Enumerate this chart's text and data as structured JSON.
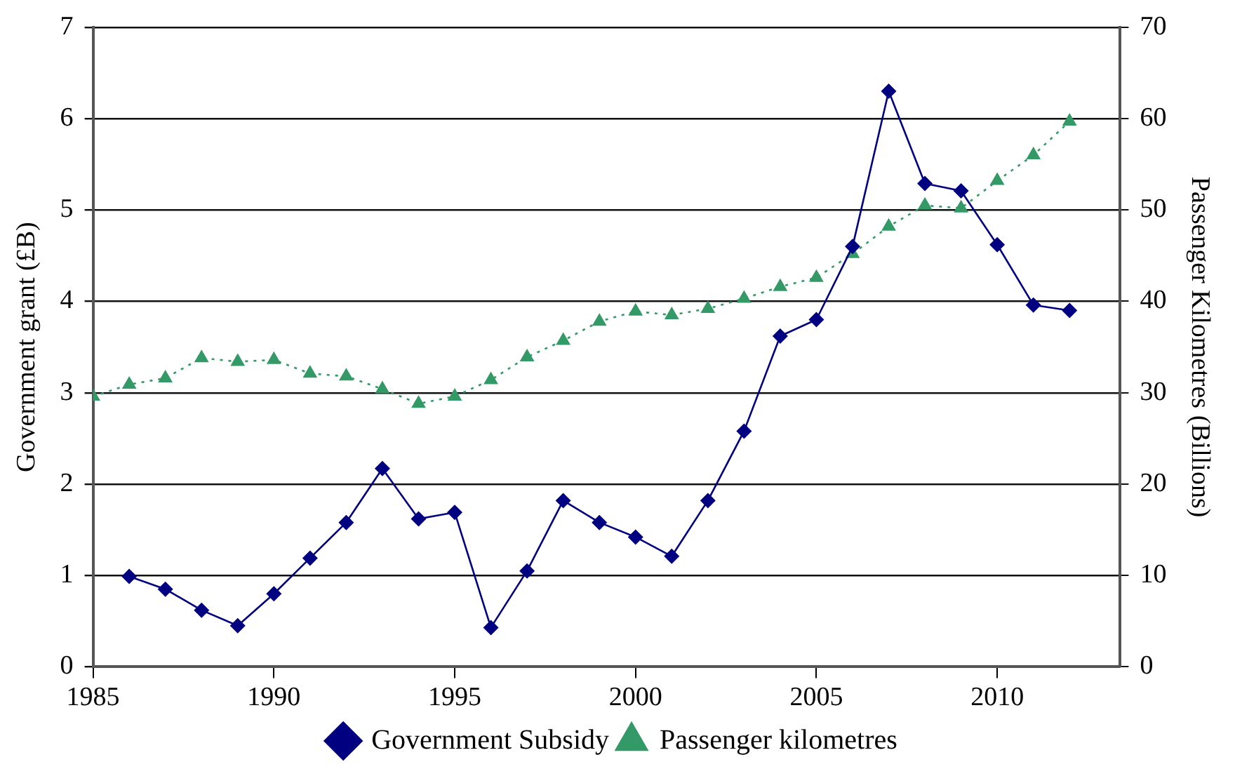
{
  "chart_data": {
    "type": "line",
    "xlabel": null,
    "ylabel": "Government grant (£B)",
    "y2label": "Passenger Kilometres (Billions)",
    "xlim": [
      1985,
      2013.4
    ],
    "xticks": [
      1985,
      1990,
      1995,
      2000,
      2005,
      2010
    ],
    "ylim": [
      0,
      7
    ],
    "yticks": [
      0,
      1,
      2,
      3,
      4,
      5,
      6,
      7
    ],
    "y2lim": [
      0,
      70
    ],
    "y2ticks": [
      0,
      10,
      20,
      30,
      40,
      50,
      60,
      70
    ],
    "grid": "y",
    "legend": "bottom",
    "series": [
      {
        "name": "Government Subsidy",
        "color": "#000080",
        "marker": "diamond",
        "line_style": "solid",
        "axis": "y",
        "x": [
          1986,
          1987,
          1988,
          1989,
          1990,
          1991,
          1992,
          1993,
          1994,
          1995,
          1996,
          1997,
          1998,
          1999,
          2000,
          2001,
          2002,
          2003,
          2004,
          2005,
          2006,
          2007,
          2008,
          2009,
          2010,
          2011,
          2012
        ],
        "values": [
          0.99,
          0.85,
          0.62,
          0.45,
          0.8,
          1.19,
          1.58,
          2.17,
          1.62,
          1.69,
          0.43,
          1.05,
          1.82,
          1.58,
          1.42,
          1.21,
          1.82,
          2.58,
          3.62,
          3.8,
          4.6,
          6.3,
          5.29,
          5.21,
          4.62,
          3.96,
          3.9
        ]
      },
      {
        "name": "Passenger kilometres",
        "color": "#339966",
        "marker": "triangle",
        "line_style": "dotted",
        "axis": "y2",
        "x": [
          1985,
          1986,
          1987,
          1988,
          1989,
          1990,
          1991,
          1992,
          1993,
          1994,
          1995,
          1996,
          1997,
          1998,
          1999,
          2000,
          2001,
          2002,
          2003,
          2004,
          2005,
          2006,
          2007,
          2008,
          2009,
          2010,
          2011,
          2012
        ],
        "values": [
          29.6,
          30.9,
          31.6,
          33.8,
          33.4,
          33.6,
          32.1,
          31.8,
          30.4,
          28.8,
          29.6,
          31.4,
          33.9,
          35.7,
          37.8,
          38.9,
          38.5,
          39.2,
          40.3,
          41.6,
          42.6,
          45.2,
          48.2,
          50.5,
          50.2,
          53.2,
          56.0,
          59.7
        ]
      }
    ]
  }
}
